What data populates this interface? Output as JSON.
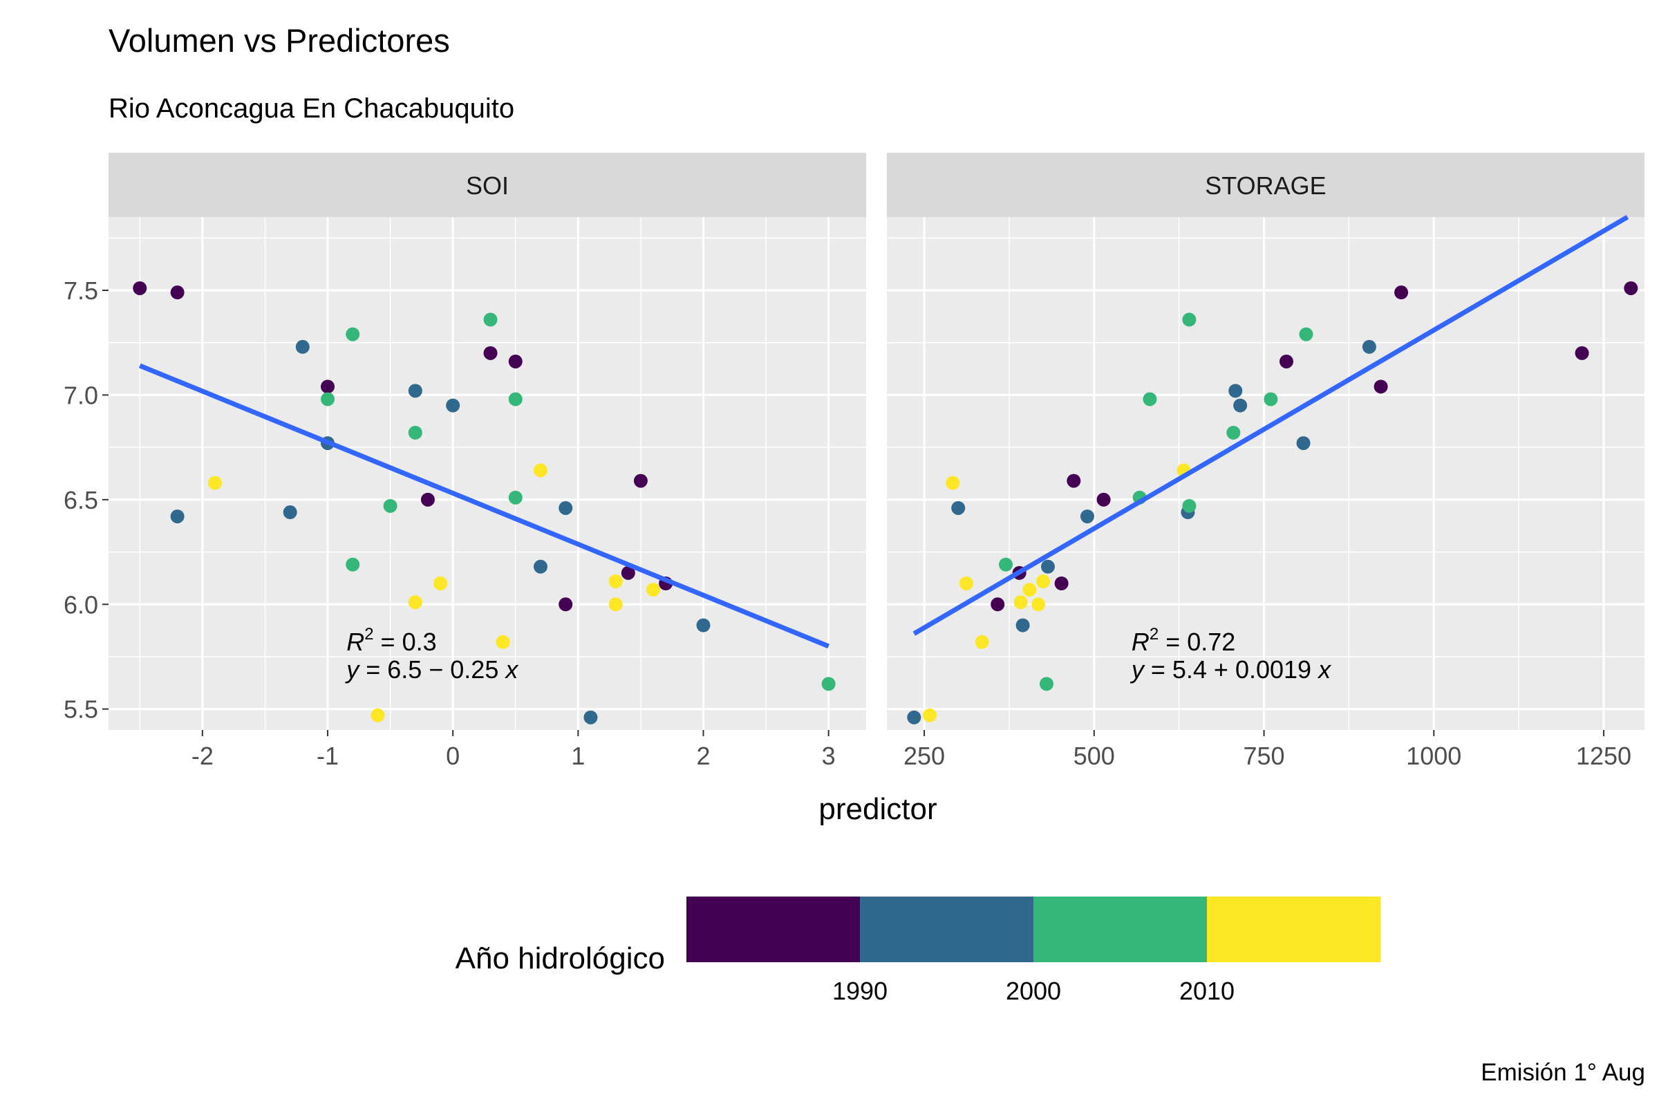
{
  "chart_data": {
    "type": "scatter",
    "title": "Volumen vs Predictores",
    "subtitle": "Rio Aconcagua En Chacabuquito",
    "xlabel": "predictor",
    "ylabel": "",
    "caption": "Emisión 1° Aug",
    "ylim": [
      5.4,
      7.85
    ],
    "y_ticks": [
      5.5,
      6.0,
      6.5,
      7.0,
      7.5
    ],
    "y_tick_labels": [
      "5.5",
      "6.0",
      "6.5",
      "7.0",
      "7.5"
    ],
    "grid": true,
    "legend": {
      "title": "Año hidrológico",
      "position": "bottom",
      "colors": [
        "#440154",
        "#31688e",
        "#35b779",
        "#fde725"
      ],
      "breaks": [
        1980,
        1990,
        2000,
        2010,
        2020
      ],
      "labels": [
        "1990",
        "2000",
        "2010"
      ]
    },
    "panels": [
      {
        "name": "SOI",
        "xlim": [
          -2.75,
          3.3
        ],
        "x_ticks": [
          -2,
          -1,
          0,
          1,
          2,
          3
        ],
        "x_tick_labels": [
          "-2",
          "-1",
          "0",
          "1",
          "2",
          "3"
        ],
        "trend": {
          "x": [
            -2.5,
            3
          ],
          "y": [
            7.14,
            5.8
          ]
        },
        "annotation": {
          "r2": "0.3",
          "equation": "6.5 − 0.25",
          "x": -0.85,
          "y": 5.78
        },
        "points": [
          {
            "x": -2.5,
            "y": 7.51,
            "year": 1985
          },
          {
            "x": -2.2,
            "y": 7.49,
            "year": 1985
          },
          {
            "x": -2.2,
            "y": 6.42,
            "year": 1993
          },
          {
            "x": -1.9,
            "y": 6.58,
            "year": 2015
          },
          {
            "x": -1.3,
            "y": 6.44,
            "year": 1995
          },
          {
            "x": -1.2,
            "y": 7.23,
            "year": 1995
          },
          {
            "x": -1.0,
            "y": 7.04,
            "year": 1985
          },
          {
            "x": -1.0,
            "y": 6.98,
            "year": 2005
          },
          {
            "x": -1.0,
            "y": 6.77,
            "year": 1995
          },
          {
            "x": -0.8,
            "y": 7.29,
            "year": 2005
          },
          {
            "x": -0.8,
            "y": 6.19,
            "year": 2005
          },
          {
            "x": -0.6,
            "y": 5.47,
            "year": 2015
          },
          {
            "x": -0.5,
            "y": 6.47,
            "year": 2005
          },
          {
            "x": -0.3,
            "y": 7.02,
            "year": 1995
          },
          {
            "x": -0.3,
            "y": 6.82,
            "year": 2005
          },
          {
            "x": -0.3,
            "y": 6.01,
            "year": 2015
          },
          {
            "x": -0.2,
            "y": 6.5,
            "year": 1985
          },
          {
            "x": -0.1,
            "y": 6.1,
            "year": 2015
          },
          {
            "x": 0.0,
            "y": 6.95,
            "year": 1995
          },
          {
            "x": 0.3,
            "y": 7.36,
            "year": 2005
          },
          {
            "x": 0.3,
            "y": 7.2,
            "year": 1985
          },
          {
            "x": 0.4,
            "y": 5.82,
            "year": 2015
          },
          {
            "x": 0.5,
            "y": 7.16,
            "year": 1985
          },
          {
            "x": 0.5,
            "y": 6.98,
            "year": 2005
          },
          {
            "x": 0.5,
            "y": 6.51,
            "year": 2005
          },
          {
            "x": 0.7,
            "y": 6.64,
            "year": 2015
          },
          {
            "x": 0.7,
            "y": 6.18,
            "year": 1995
          },
          {
            "x": 0.9,
            "y": 6.46,
            "year": 1995
          },
          {
            "x": 0.9,
            "y": 6.0,
            "year": 1985
          },
          {
            "x": 1.1,
            "y": 5.46,
            "year": 1995
          },
          {
            "x": 1.3,
            "y": 6.11,
            "year": 2015
          },
          {
            "x": 1.3,
            "y": 6.0,
            "year": 2015
          },
          {
            "x": 1.4,
            "y": 6.15,
            "year": 1985
          },
          {
            "x": 1.5,
            "y": 6.59,
            "year": 1985
          },
          {
            "x": 1.6,
            "y": 6.07,
            "year": 2015
          },
          {
            "x": 1.7,
            "y": 6.1,
            "year": 1985
          },
          {
            "x": 2.0,
            "y": 5.9,
            "year": 1995
          },
          {
            "x": 3.0,
            "y": 5.62,
            "year": 2005
          }
        ]
      },
      {
        "name": "STORAGE",
        "xlim": [
          195,
          1310
        ],
        "x_ticks": [
          250,
          500,
          750,
          1000,
          1250
        ],
        "x_tick_labels": [
          "250",
          "500",
          "750",
          "1000",
          "1250"
        ],
        "trend": {
          "x": [
            235,
            1285
          ],
          "y": [
            5.86,
            7.85
          ]
        },
        "annotation": {
          "r2": "0.72",
          "equation": "5.4 + 0.0019",
          "x": 555,
          "y": 5.78
        },
        "points": [
          {
            "x": 235,
            "y": 5.46,
            "year": 1995
          },
          {
            "x": 258,
            "y": 5.47,
            "year": 2015
          },
          {
            "x": 292,
            "y": 6.58,
            "year": 2015
          },
          {
            "x": 300,
            "y": 6.46,
            "year": 1995
          },
          {
            "x": 312,
            "y": 6.1,
            "year": 2015
          },
          {
            "x": 335,
            "y": 5.82,
            "year": 2015
          },
          {
            "x": 358,
            "y": 6.0,
            "year": 1985
          },
          {
            "x": 370,
            "y": 6.19,
            "year": 2005
          },
          {
            "x": 390,
            "y": 6.15,
            "year": 1985
          },
          {
            "x": 392,
            "y": 6.01,
            "year": 2015
          },
          {
            "x": 395,
            "y": 5.9,
            "year": 1995
          },
          {
            "x": 405,
            "y": 6.07,
            "year": 2015
          },
          {
            "x": 418,
            "y": 6.0,
            "year": 2015
          },
          {
            "x": 425,
            "y": 6.11,
            "year": 2015
          },
          {
            "x": 430,
            "y": 5.62,
            "year": 2005
          },
          {
            "x": 432,
            "y": 6.18,
            "year": 1995
          },
          {
            "x": 452,
            "y": 6.1,
            "year": 1985
          },
          {
            "x": 470,
            "y": 6.59,
            "year": 1985
          },
          {
            "x": 490,
            "y": 6.42,
            "year": 1995
          },
          {
            "x": 514,
            "y": 6.5,
            "year": 1985
          },
          {
            "x": 567,
            "y": 6.51,
            "year": 2005
          },
          {
            "x": 582,
            "y": 6.98,
            "year": 2005
          },
          {
            "x": 632,
            "y": 6.64,
            "year": 2015
          },
          {
            "x": 638,
            "y": 6.44,
            "year": 1995
          },
          {
            "x": 640,
            "y": 6.47,
            "year": 2005
          },
          {
            "x": 640,
            "y": 7.36,
            "year": 2005
          },
          {
            "x": 705,
            "y": 6.82,
            "year": 2005
          },
          {
            "x": 708,
            "y": 7.02,
            "year": 1995
          },
          {
            "x": 715,
            "y": 6.95,
            "year": 1995
          },
          {
            "x": 760,
            "y": 6.98,
            "year": 2005
          },
          {
            "x": 783,
            "y": 7.16,
            "year": 1985
          },
          {
            "x": 808,
            "y": 6.77,
            "year": 1995
          },
          {
            "x": 812,
            "y": 7.29,
            "year": 2005
          },
          {
            "x": 905,
            "y": 7.23,
            "year": 1995
          },
          {
            "x": 922,
            "y": 7.04,
            "year": 1985
          },
          {
            "x": 952,
            "y": 7.49,
            "year": 1985
          },
          {
            "x": 1218,
            "y": 7.2,
            "year": 1985
          },
          {
            "x": 1290,
            "y": 7.51,
            "year": 1985
          }
        ]
      }
    ]
  }
}
